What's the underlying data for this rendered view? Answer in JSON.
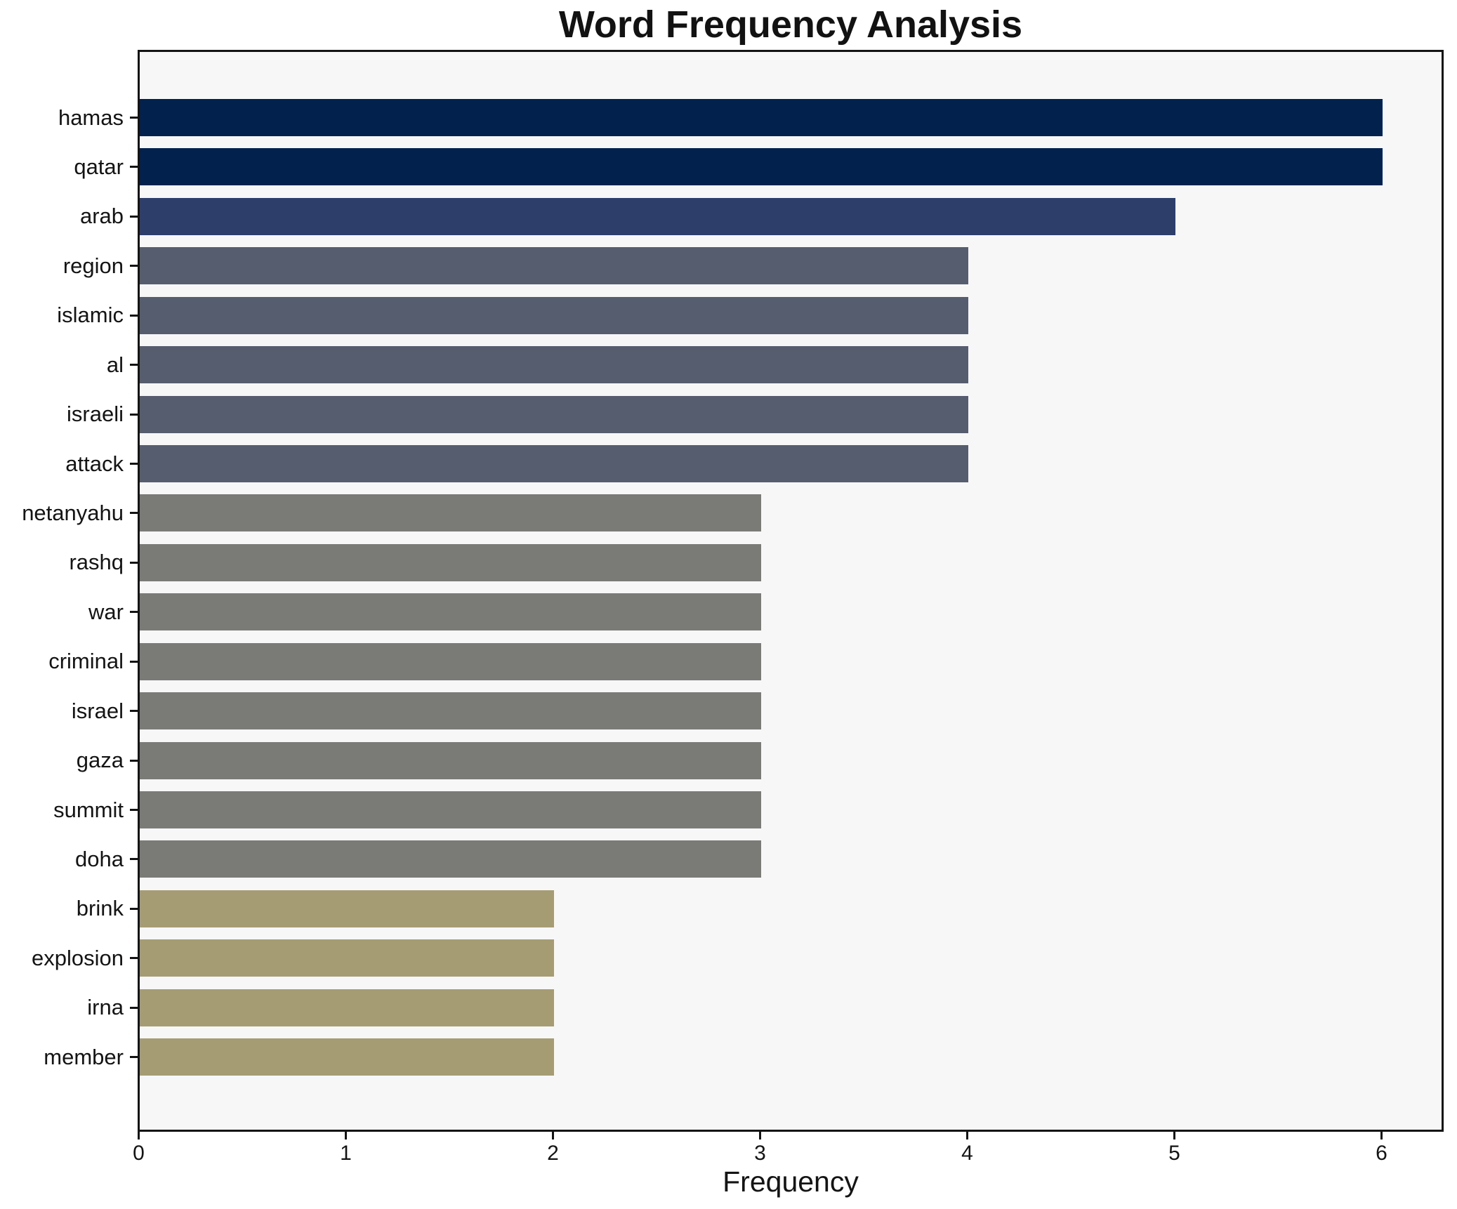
{
  "chart_data": {
    "type": "bar",
    "orientation": "horizontal",
    "title": "Word Frequency Analysis",
    "xlabel": "Frequency",
    "ylabel": "",
    "categories": [
      "hamas",
      "qatar",
      "arab",
      "region",
      "islamic",
      "al",
      "israeli",
      "attack",
      "netanyahu",
      "rashq",
      "war",
      "criminal",
      "israel",
      "gaza",
      "summit",
      "doha",
      "brink",
      "explosion",
      "irna",
      "member"
    ],
    "values": [
      6,
      6,
      5,
      4,
      4,
      4,
      4,
      4,
      3,
      3,
      3,
      3,
      3,
      3,
      3,
      3,
      2,
      2,
      2,
      2
    ],
    "bar_colors": [
      "#02214d",
      "#02214d",
      "#2d3e6b",
      "#565d6e",
      "#565d6e",
      "#565d6e",
      "#565d6e",
      "#565d6e",
      "#7a7a77",
      "#7a7a77",
      "#7a7a77",
      "#7a7a77",
      "#7a7a77",
      "#7a7a77",
      "#7a7a77",
      "#7a7a77",
      "#a69c74",
      "#a69c74",
      "#a69c74",
      "#a69c74"
    ],
    "colors_by_value": {
      "6": "#02214d",
      "5": "#2d3e6b",
      "4": "#565d6e",
      "3": "#7a7a77",
      "2": "#a69c74"
    },
    "x_ticks": [
      0,
      1,
      2,
      3,
      4,
      5,
      6
    ],
    "xlim": [
      0,
      6.285
    ],
    "grid": false,
    "legend": null,
    "plot_background": "#f7f7f8",
    "figure_background": "#ffffff",
    "spine_color": "#141414",
    "text_color": "#141414"
  }
}
